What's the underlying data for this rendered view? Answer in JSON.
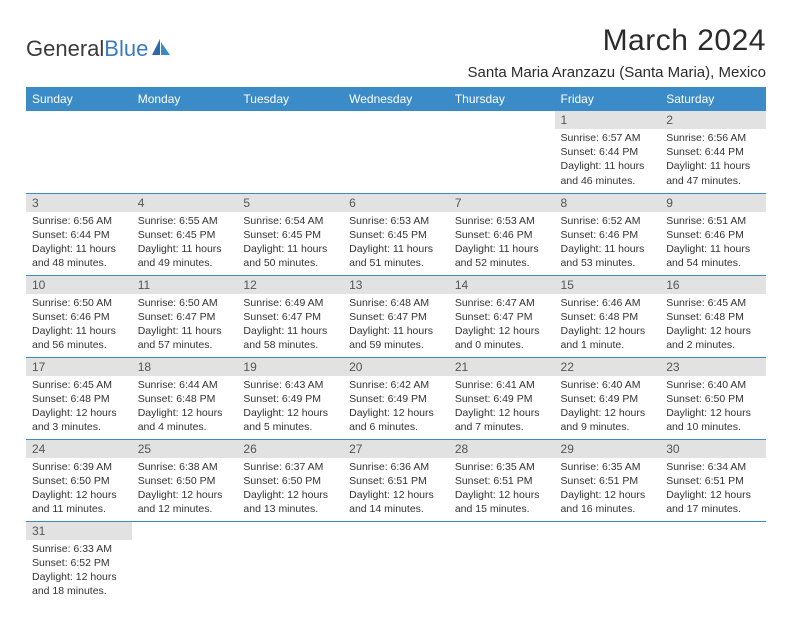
{
  "logo": {
    "text1": "General",
    "text2": "Blue"
  },
  "title": "March 2024",
  "location": "Santa Maria Aranzazu (Santa Maria), Mexico",
  "colors": {
    "header_bg": "#3b8bc8",
    "header_fg": "#ffffff",
    "daynum_bg": "#e2e2e2",
    "rule": "#3b8bc8",
    "logo_blue": "#3b7bbf"
  },
  "day_labels": [
    "Sunday",
    "Monday",
    "Tuesday",
    "Wednesday",
    "Thursday",
    "Friday",
    "Saturday"
  ],
  "weeks": [
    [
      null,
      null,
      null,
      null,
      null,
      {
        "n": "1",
        "sunrise": "Sunrise: 6:57 AM",
        "sunset": "Sunset: 6:44 PM",
        "day1": "Daylight: 11 hours",
        "day2": "and 46 minutes."
      },
      {
        "n": "2",
        "sunrise": "Sunrise: 6:56 AM",
        "sunset": "Sunset: 6:44 PM",
        "day1": "Daylight: 11 hours",
        "day2": "and 47 minutes."
      }
    ],
    [
      {
        "n": "3",
        "sunrise": "Sunrise: 6:56 AM",
        "sunset": "Sunset: 6:44 PM",
        "day1": "Daylight: 11 hours",
        "day2": "and 48 minutes."
      },
      {
        "n": "4",
        "sunrise": "Sunrise: 6:55 AM",
        "sunset": "Sunset: 6:45 PM",
        "day1": "Daylight: 11 hours",
        "day2": "and 49 minutes."
      },
      {
        "n": "5",
        "sunrise": "Sunrise: 6:54 AM",
        "sunset": "Sunset: 6:45 PM",
        "day1": "Daylight: 11 hours",
        "day2": "and 50 minutes."
      },
      {
        "n": "6",
        "sunrise": "Sunrise: 6:53 AM",
        "sunset": "Sunset: 6:45 PM",
        "day1": "Daylight: 11 hours",
        "day2": "and 51 minutes."
      },
      {
        "n": "7",
        "sunrise": "Sunrise: 6:53 AM",
        "sunset": "Sunset: 6:46 PM",
        "day1": "Daylight: 11 hours",
        "day2": "and 52 minutes."
      },
      {
        "n": "8",
        "sunrise": "Sunrise: 6:52 AM",
        "sunset": "Sunset: 6:46 PM",
        "day1": "Daylight: 11 hours",
        "day2": "and 53 minutes."
      },
      {
        "n": "9",
        "sunrise": "Sunrise: 6:51 AM",
        "sunset": "Sunset: 6:46 PM",
        "day1": "Daylight: 11 hours",
        "day2": "and 54 minutes."
      }
    ],
    [
      {
        "n": "10",
        "sunrise": "Sunrise: 6:50 AM",
        "sunset": "Sunset: 6:46 PM",
        "day1": "Daylight: 11 hours",
        "day2": "and 56 minutes."
      },
      {
        "n": "11",
        "sunrise": "Sunrise: 6:50 AM",
        "sunset": "Sunset: 6:47 PM",
        "day1": "Daylight: 11 hours",
        "day2": "and 57 minutes."
      },
      {
        "n": "12",
        "sunrise": "Sunrise: 6:49 AM",
        "sunset": "Sunset: 6:47 PM",
        "day1": "Daylight: 11 hours",
        "day2": "and 58 minutes."
      },
      {
        "n": "13",
        "sunrise": "Sunrise: 6:48 AM",
        "sunset": "Sunset: 6:47 PM",
        "day1": "Daylight: 11 hours",
        "day2": "and 59 minutes."
      },
      {
        "n": "14",
        "sunrise": "Sunrise: 6:47 AM",
        "sunset": "Sunset: 6:47 PM",
        "day1": "Daylight: 12 hours",
        "day2": "and 0 minutes."
      },
      {
        "n": "15",
        "sunrise": "Sunrise: 6:46 AM",
        "sunset": "Sunset: 6:48 PM",
        "day1": "Daylight: 12 hours",
        "day2": "and 1 minute."
      },
      {
        "n": "16",
        "sunrise": "Sunrise: 6:45 AM",
        "sunset": "Sunset: 6:48 PM",
        "day1": "Daylight: 12 hours",
        "day2": "and 2 minutes."
      }
    ],
    [
      {
        "n": "17",
        "sunrise": "Sunrise: 6:45 AM",
        "sunset": "Sunset: 6:48 PM",
        "day1": "Daylight: 12 hours",
        "day2": "and 3 minutes."
      },
      {
        "n": "18",
        "sunrise": "Sunrise: 6:44 AM",
        "sunset": "Sunset: 6:48 PM",
        "day1": "Daylight: 12 hours",
        "day2": "and 4 minutes."
      },
      {
        "n": "19",
        "sunrise": "Sunrise: 6:43 AM",
        "sunset": "Sunset: 6:49 PM",
        "day1": "Daylight: 12 hours",
        "day2": "and 5 minutes."
      },
      {
        "n": "20",
        "sunrise": "Sunrise: 6:42 AM",
        "sunset": "Sunset: 6:49 PM",
        "day1": "Daylight: 12 hours",
        "day2": "and 6 minutes."
      },
      {
        "n": "21",
        "sunrise": "Sunrise: 6:41 AM",
        "sunset": "Sunset: 6:49 PM",
        "day1": "Daylight: 12 hours",
        "day2": "and 7 minutes."
      },
      {
        "n": "22",
        "sunrise": "Sunrise: 6:40 AM",
        "sunset": "Sunset: 6:49 PM",
        "day1": "Daylight: 12 hours",
        "day2": "and 9 minutes."
      },
      {
        "n": "23",
        "sunrise": "Sunrise: 6:40 AM",
        "sunset": "Sunset: 6:50 PM",
        "day1": "Daylight: 12 hours",
        "day2": "and 10 minutes."
      }
    ],
    [
      {
        "n": "24",
        "sunrise": "Sunrise: 6:39 AM",
        "sunset": "Sunset: 6:50 PM",
        "day1": "Daylight: 12 hours",
        "day2": "and 11 minutes."
      },
      {
        "n": "25",
        "sunrise": "Sunrise: 6:38 AM",
        "sunset": "Sunset: 6:50 PM",
        "day1": "Daylight: 12 hours",
        "day2": "and 12 minutes."
      },
      {
        "n": "26",
        "sunrise": "Sunrise: 6:37 AM",
        "sunset": "Sunset: 6:50 PM",
        "day1": "Daylight: 12 hours",
        "day2": "and 13 minutes."
      },
      {
        "n": "27",
        "sunrise": "Sunrise: 6:36 AM",
        "sunset": "Sunset: 6:51 PM",
        "day1": "Daylight: 12 hours",
        "day2": "and 14 minutes."
      },
      {
        "n": "28",
        "sunrise": "Sunrise: 6:35 AM",
        "sunset": "Sunset: 6:51 PM",
        "day1": "Daylight: 12 hours",
        "day2": "and 15 minutes."
      },
      {
        "n": "29",
        "sunrise": "Sunrise: 6:35 AM",
        "sunset": "Sunset: 6:51 PM",
        "day1": "Daylight: 12 hours",
        "day2": "and 16 minutes."
      },
      {
        "n": "30",
        "sunrise": "Sunrise: 6:34 AM",
        "sunset": "Sunset: 6:51 PM",
        "day1": "Daylight: 12 hours",
        "day2": "and 17 minutes."
      }
    ],
    [
      {
        "n": "31",
        "sunrise": "Sunrise: 6:33 AM",
        "sunset": "Sunset: 6:52 PM",
        "day1": "Daylight: 12 hours",
        "day2": "and 18 minutes."
      },
      null,
      null,
      null,
      null,
      null,
      null
    ]
  ]
}
